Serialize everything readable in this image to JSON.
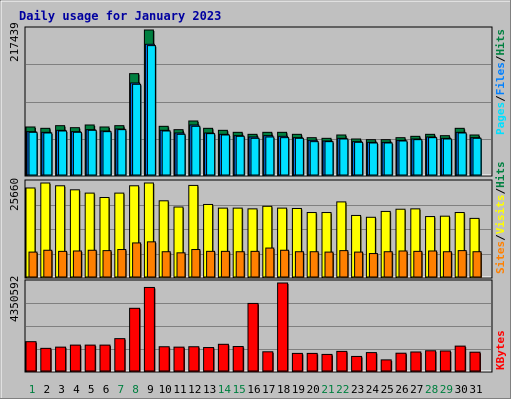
{
  "title": "Daily usage for January 2023",
  "colors": {
    "background": "#C0C0C0",
    "title": "#0000A0",
    "hits": "#008040",
    "files": "#0080FF",
    "pages": "#00E0FF",
    "visits": "#FFFF00",
    "sites": "#FF8000",
    "kbytes": "#FF0000",
    "weekend_label": "#008040",
    "weekday_label": "#000000"
  },
  "chart_data": [
    {
      "type": "bar",
      "panel": "traffic",
      "max_label": "217439",
      "ylim": [
        0,
        217439
      ],
      "grid": true,
      "legend": [
        "Pages",
        "Files",
        "Hits"
      ],
      "legend_separator": "/",
      "categories": [
        "1",
        "2",
        "3",
        "4",
        "5",
        "6",
        "7",
        "8",
        "9",
        "10",
        "11",
        "12",
        "13",
        "14",
        "15",
        "16",
        "17",
        "18",
        "19",
        "20",
        "21",
        "22",
        "23",
        "24",
        "25",
        "26",
        "27",
        "28",
        "29",
        "30",
        "31"
      ],
      "weekend_days": [
        "1",
        "7",
        "8",
        "14",
        "15",
        "21",
        "22",
        "28",
        "29"
      ],
      "series": [
        {
          "name": "Hits",
          "values": [
            72000,
            70000,
            74000,
            71000,
            75000,
            72000,
            74000,
            152000,
            217439,
            73000,
            68000,
            81000,
            70000,
            67000,
            64000,
            61000,
            64000,
            64000,
            61000,
            56000,
            55000,
            60000,
            54000,
            53000,
            53000,
            56000,
            58000,
            61000,
            59000,
            70000,
            60000
          ]
        },
        {
          "name": "Files",
          "values": [
            65000,
            64000,
            67000,
            65000,
            68000,
            66000,
            69000,
            138000,
            196000,
            67000,
            63000,
            75000,
            63000,
            61000,
            59000,
            57000,
            59000,
            58000,
            56000,
            52000,
            51000,
            55000,
            50000,
            49000,
            49000,
            52000,
            54000,
            57000,
            55000,
            64000,
            56000
          ]
        },
        {
          "name": "Pages",
          "values": [
            64000,
            63000,
            66000,
            64000,
            67000,
            65000,
            68000,
            136000,
            194000,
            66000,
            61000,
            73000,
            62000,
            60000,
            58000,
            55000,
            57000,
            56000,
            55000,
            50000,
            50000,
            54000,
            49000,
            48000,
            48000,
            51000,
            53000,
            56000,
            54000,
            63000,
            55000
          ]
        }
      ]
    },
    {
      "type": "bar",
      "panel": "visitors",
      "max_label": "25660",
      "ylim": [
        0,
        25660
      ],
      "grid": true,
      "legend": [
        "Sites",
        "Visits",
        "Hits"
      ],
      "legend_separator": "/",
      "categories": [
        "1",
        "2",
        "3",
        "4",
        "5",
        "6",
        "7",
        "8",
        "9",
        "10",
        "11",
        "12",
        "13",
        "14",
        "15",
        "16",
        "17",
        "18",
        "19",
        "20",
        "21",
        "22",
        "23",
        "24",
        "25",
        "26",
        "27",
        "28",
        "29",
        "30",
        "31"
      ],
      "series": [
        {
          "name": "Visits",
          "values": [
            24300,
            25660,
            24900,
            23800,
            22900,
            21700,
            22900,
            24900,
            25660,
            20800,
            19100,
            25000,
            19800,
            18800,
            18800,
            18600,
            19300,
            18800,
            18700,
            17600,
            17600,
            20500,
            16800,
            16300,
            17900,
            18500,
            18600,
            16500,
            16600,
            17600,
            16000
          ]
        },
        {
          "name": "Sites",
          "values": [
            6800,
            7300,
            7000,
            7100,
            7300,
            7200,
            7500,
            9300,
            9600,
            6900,
            6600,
            7500,
            7000,
            7000,
            6900,
            7000,
            7900,
            7300,
            6900,
            6900,
            6800,
            7200,
            6800,
            6400,
            6900,
            7100,
            7000,
            7100,
            6900,
            7200,
            6900
          ]
        }
      ]
    },
    {
      "type": "bar",
      "panel": "kbytes",
      "max_label": "4350592",
      "ylim": [
        0,
        4350592
      ],
      "grid": true,
      "legend": [
        "KBytes"
      ],
      "categories": [
        "1",
        "2",
        "3",
        "4",
        "5",
        "6",
        "7",
        "8",
        "9",
        "10",
        "11",
        "12",
        "13",
        "14",
        "15",
        "16",
        "17",
        "18",
        "19",
        "20",
        "21",
        "22",
        "23",
        "24",
        "25",
        "26",
        "27",
        "28",
        "29",
        "30",
        "31"
      ],
      "series": [
        {
          "name": "KBytes",
          "values": [
            1450000,
            1120000,
            1180000,
            1280000,
            1280000,
            1280000,
            1600000,
            3100000,
            4130000,
            1200000,
            1180000,
            1200000,
            1160000,
            1320000,
            1210000,
            3340000,
            950000,
            4350592,
            870000,
            870000,
            820000,
            970000,
            720000,
            910000,
            550000,
            880000,
            940000,
            1000000,
            990000,
            1230000,
            930000
          ]
        }
      ]
    }
  ]
}
